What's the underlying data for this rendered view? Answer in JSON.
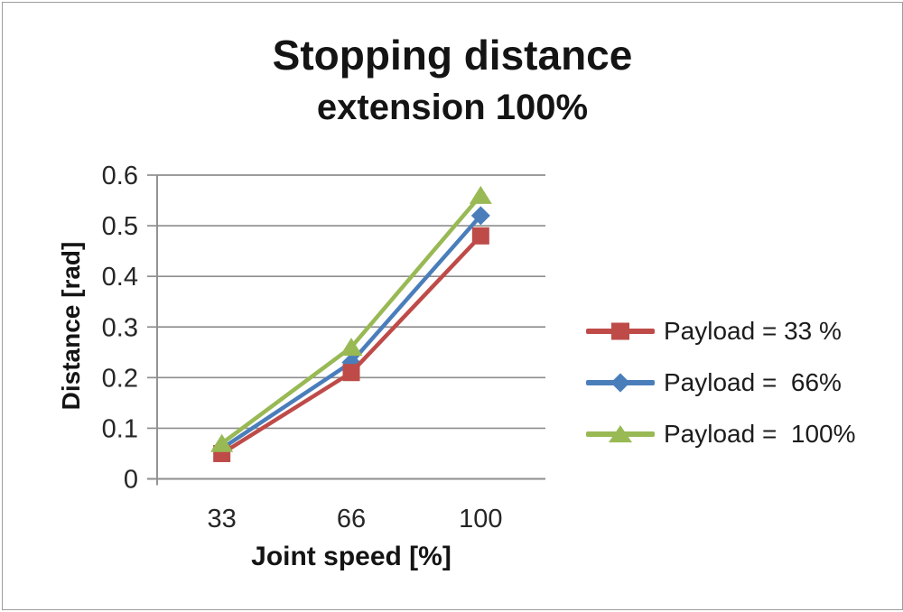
{
  "chart_data": {
    "type": "line",
    "title": "Stopping distance",
    "subtitle": "extension 100%",
    "categories": [
      "33",
      "66",
      "100"
    ],
    "series": [
      {
        "name": "Payload = 33 %",
        "marker": "square",
        "color": "#be4b48",
        "values": [
          0.05,
          0.21,
          0.48
        ]
      },
      {
        "name": "Payload =  66%",
        "marker": "diamond",
        "color": "#4a7ebb",
        "values": [
          0.06,
          0.23,
          0.52
        ]
      },
      {
        "name": "Payload =  100%",
        "marker": "triangle",
        "color": "#98b954",
        "values": [
          0.07,
          0.26,
          0.56
        ]
      }
    ],
    "xlabel": "Joint speed [%]",
    "ylabel": "Distance [rad]",
    "ylim": [
      0,
      0.6
    ],
    "yticks": [
      "0",
      "0.1",
      "0.2",
      "0.3",
      "0.4",
      "0.5",
      "0.6"
    ],
    "grid": true,
    "legend_position": "right",
    "paint_order": [
      1,
      0,
      2
    ],
    "axis_color": "#8e8e8e",
    "text_color": "#262626"
  }
}
